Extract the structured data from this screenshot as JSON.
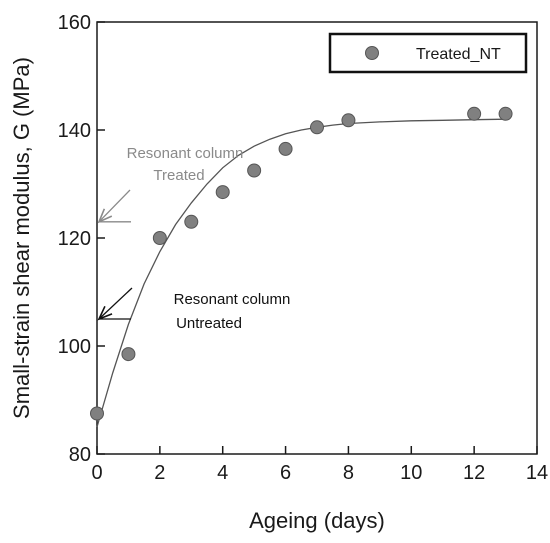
{
  "chart_data": {
    "type": "scatter",
    "title": "",
    "xlabel": "Ageing (days)",
    "ylabel": "Small-strain shear modulus, G (MPa)",
    "xlim": [
      0,
      14
    ],
    "ylim": [
      80,
      160
    ],
    "xticks": [
      0,
      2,
      4,
      6,
      8,
      10,
      12,
      14
    ],
    "yticks": [
      80,
      100,
      120,
      140,
      160
    ],
    "grid": false,
    "legend_position": "top-right",
    "series": [
      {
        "name": "Treated_NT",
        "marker": "circle",
        "color": "#808080",
        "x": [
          0,
          1,
          2,
          3,
          4,
          5,
          6,
          7,
          8,
          12,
          13
        ],
        "y": [
          87.5,
          98.5,
          120,
          123,
          128.5,
          132.5,
          136.5,
          140.5,
          141.8,
          143,
          143
        ]
      }
    ],
    "fit_curve": {
      "color": "#555555",
      "x": [
        0,
        0.5,
        1,
        1.5,
        2,
        2.5,
        3,
        3.5,
        4,
        4.5,
        5,
        5.5,
        6,
        6.5,
        7,
        7.5,
        8,
        9,
        10,
        11,
        12,
        13
      ],
      "y": [
        85,
        95,
        104,
        111.5,
        117.5,
        122.5,
        126.5,
        130,
        133,
        135.3,
        137,
        138.3,
        139.3,
        140,
        140.5,
        140.9,
        141.2,
        141.5,
        141.7,
        141.8,
        141.9,
        142
      ]
    },
    "annotations": [
      {
        "lines": [
          "Resonant column",
          "Treated"
        ],
        "value": 123,
        "color": "#8a8a8a"
      },
      {
        "lines": [
          "Resonant column",
          "Untreated"
        ],
        "value": 105,
        "color": "#111111"
      }
    ]
  }
}
